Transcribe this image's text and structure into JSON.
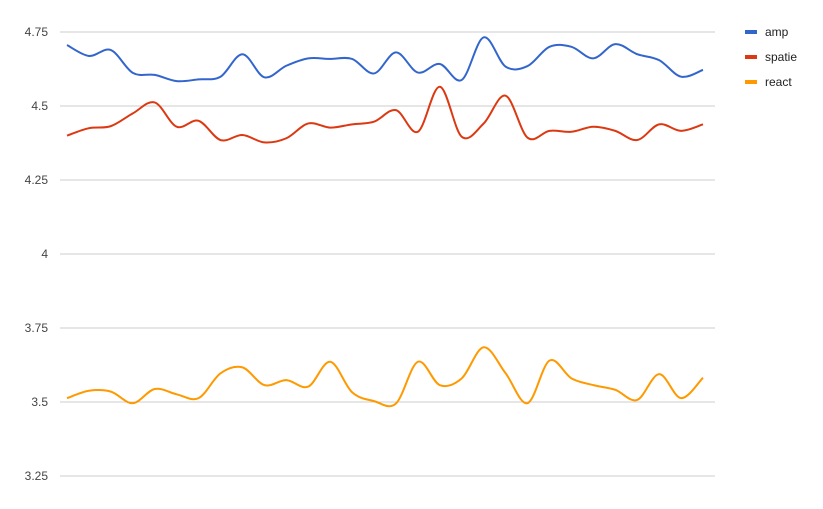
{
  "chart_data": {
    "type": "line",
    "title": "",
    "xlabel": "",
    "ylabel": "",
    "ylim": [
      3.25,
      4.75
    ],
    "y_ticks": [
      "3.25",
      "3.5",
      "3.75",
      "4",
      "4.25",
      "4.5",
      "4.75"
    ],
    "grid": true,
    "curve": "smooth",
    "legend_position": "right",
    "series": [
      {
        "name": "amp",
        "color": "#3366cc",
        "values": [
          4.706,
          4.669,
          4.689,
          4.612,
          4.605,
          4.584,
          4.59,
          4.599,
          4.675,
          4.597,
          4.636,
          4.661,
          4.659,
          4.659,
          4.61,
          4.681,
          4.613,
          4.642,
          4.588,
          4.732,
          4.633,
          4.635,
          4.7,
          4.7,
          4.661,
          4.709,
          4.675,
          4.655,
          4.599,
          4.622
        ]
      },
      {
        "name": "spatie",
        "color": "#dc3912",
        "values": [
          4.4,
          4.425,
          4.432,
          4.475,
          4.512,
          4.43,
          4.45,
          4.385,
          4.402,
          4.377,
          4.391,
          4.441,
          4.427,
          4.438,
          4.447,
          4.486,
          4.413,
          4.565,
          4.396,
          4.441,
          4.535,
          4.393,
          4.416,
          4.413,
          4.43,
          4.416,
          4.385,
          4.438,
          4.416,
          4.438
        ]
      },
      {
        "name": "react",
        "color": "#ff9900",
        "values": [
          3.513,
          3.538,
          3.535,
          3.496,
          3.544,
          3.526,
          3.513,
          3.597,
          3.617,
          3.557,
          3.574,
          3.552,
          3.636,
          3.533,
          3.503,
          3.495,
          3.636,
          3.557,
          3.58,
          3.685,
          3.597,
          3.496,
          3.64,
          3.58,
          3.557,
          3.541,
          3.507,
          3.594,
          3.513,
          3.582
        ]
      }
    ]
  }
}
